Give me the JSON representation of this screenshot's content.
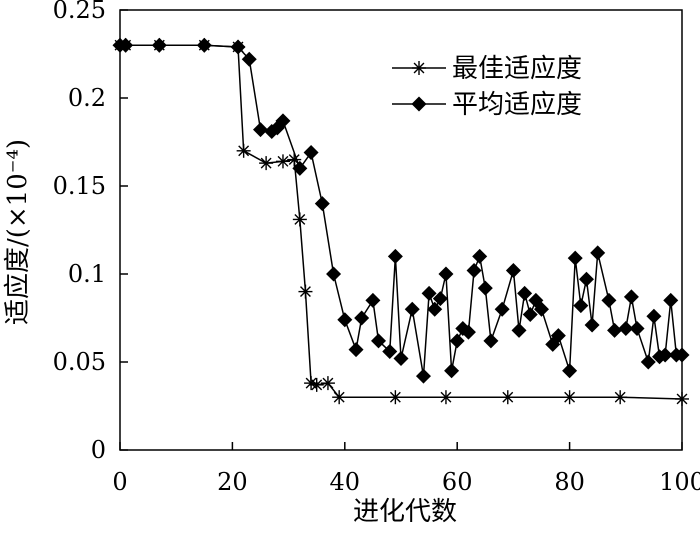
{
  "chart_data": {
    "type": "line",
    "title": "",
    "xlabel": "进化代数",
    "ylabel": "适应度/(×10⁻⁴)",
    "xlim": [
      0,
      100
    ],
    "ylim": [
      0,
      0.25
    ],
    "xticks": [
      "0",
      "20",
      "40",
      "60",
      "80",
      "100"
    ],
    "yticks": [
      "0",
      "0.05",
      "0.1",
      "0.15",
      "0.2",
      "0.25"
    ],
    "legend_position": "top-right",
    "series": [
      {
        "name": "最佳适应度",
        "marker": "asterisk",
        "x": [
          0,
          1,
          7,
          15,
          21,
          22,
          26,
          29,
          31,
          32,
          33,
          34,
          35,
          37,
          39,
          49,
          58,
          69,
          80,
          89,
          100
        ],
        "y": [
          0.23,
          0.23,
          0.23,
          0.23,
          0.229,
          0.17,
          0.163,
          0.164,
          0.165,
          0.131,
          0.09,
          0.038,
          0.037,
          0.038,
          0.03,
          0.03,
          0.03,
          0.03,
          0.03,
          0.03,
          0.029
        ]
      },
      {
        "name": "平均适应度",
        "marker": "diamond",
        "x": [
          0,
          1,
          7,
          15,
          21,
          23,
          25,
          27,
          28,
          29,
          32,
          34,
          36,
          38,
          40,
          42,
          43,
          45,
          46,
          48,
          49,
          50,
          52,
          54,
          55,
          56,
          57,
          58,
          59,
          60,
          61,
          62,
          63,
          64,
          65,
          66,
          68,
          70,
          71,
          72,
          73,
          74,
          75,
          77,
          78,
          80,
          81,
          82,
          83,
          84,
          85,
          87,
          88,
          90,
          91,
          92,
          94,
          95,
          96,
          97,
          98,
          99,
          100
        ],
        "y": [
          0.23,
          0.23,
          0.23,
          0.23,
          0.229,
          0.222,
          0.182,
          0.181,
          0.183,
          0.187,
          0.16,
          0.169,
          0.14,
          0.1,
          0.074,
          0.057,
          0.075,
          0.085,
          0.062,
          0.056,
          0.11,
          0.052,
          0.08,
          0.042,
          0.089,
          0.08,
          0.086,
          0.1,
          0.045,
          0.062,
          0.069,
          0.067,
          0.102,
          0.11,
          0.092,
          0.062,
          0.08,
          0.102,
          0.068,
          0.089,
          0.077,
          0.085,
          0.08,
          0.06,
          0.065,
          0.045,
          0.109,
          0.082,
          0.097,
          0.071,
          0.112,
          0.085,
          0.068,
          0.069,
          0.087,
          0.069,
          0.05,
          0.076,
          0.053,
          0.054,
          0.085,
          0.054,
          0.054
        ]
      }
    ]
  }
}
